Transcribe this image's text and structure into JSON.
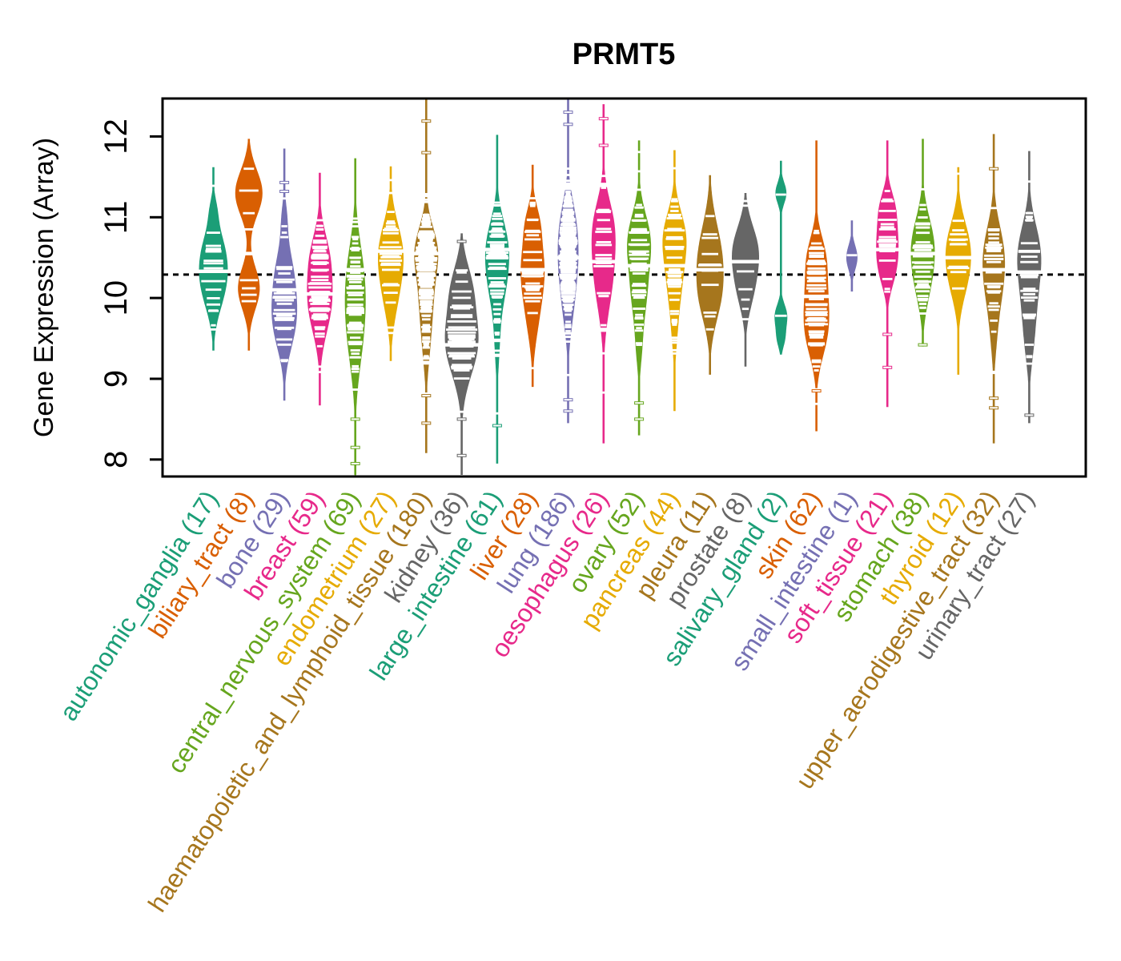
{
  "chart_data": {
    "type": "violin",
    "title": "PRMT5",
    "ylabel": "Gene Expression (Array)",
    "xlabel": "",
    "ylim": [
      7.79,
      12.47
    ],
    "yticks": [
      "8",
      "9",
      "10",
      "11",
      "12"
    ],
    "ytick_values": [
      8,
      9,
      10,
      11,
      12
    ],
    "grid": false,
    "legend": "none",
    "x_label_angle": 57,
    "reference_line": {
      "value": 10.29,
      "style": "dotted",
      "color": "#000000"
    },
    "palette_dark2": [
      "#1B9E77",
      "#D95F02",
      "#7570B3",
      "#E7298A",
      "#66A61E",
      "#E6AB02",
      "#A6761D",
      "#666666"
    ],
    "categories": [
      {
        "label": "autonomic_ganglia",
        "count": 17,
        "display": "autonomic_ganglia (17)",
        "color": "#1B9E77",
        "min": 9.35,
        "max": 11.62,
        "median": 10.33,
        "halfwidth": 18,
        "bumps": [
          [
            10.15,
            0.32,
            1
          ],
          [
            10.6,
            0.3,
            0.8
          ],
          [
            11.1,
            0.15,
            0.2
          ]
        ],
        "outliers": []
      },
      {
        "label": "biliary_tract",
        "count": 8,
        "display": "biliary_tract (8)",
        "color": "#D95F02",
        "min": 9.35,
        "max": 11.97,
        "median": 10.55,
        "halfwidth": 17,
        "bumps": [
          [
            11.3,
            0.28,
            1
          ],
          [
            10.12,
            0.26,
            0.8
          ]
        ],
        "points": [
          11.6,
          11.33,
          11.05,
          10.85,
          10.22,
          10.12,
          10.04,
          9.96
        ],
        "outliers": []
      },
      {
        "label": "bone",
        "count": 29,
        "display": "bone (29)",
        "color": "#7570B3",
        "min": 8.73,
        "max": 11.85,
        "median": 10.1,
        "halfwidth": 16,
        "bumps": [
          [
            9.7,
            0.35,
            1
          ],
          [
            10.3,
            0.35,
            0.75
          ],
          [
            11.0,
            0.2,
            0.2
          ]
        ],
        "outliers": [
          11.43,
          11.32
        ]
      },
      {
        "label": "breast",
        "count": 59,
        "display": "breast (59)",
        "color": "#E7298A",
        "min": 8.67,
        "max": 11.55,
        "median": 10.05,
        "halfwidth": 16,
        "bumps": [
          [
            9.95,
            0.38,
            1
          ],
          [
            10.55,
            0.3,
            0.6
          ]
        ],
        "outliers": []
      },
      {
        "label": "central_nervous_system",
        "count": 69,
        "display": "central_nervous_system (69)",
        "color": "#66A61E",
        "min": 7.79,
        "max": 11.73,
        "median": 10.35,
        "halfwidth": 13,
        "bumps": [
          [
            10.3,
            0.45,
            0.9
          ],
          [
            9.6,
            0.5,
            1.0
          ]
        ],
        "outliers": [
          8.5,
          8.15,
          7.95
        ]
      },
      {
        "label": "endometrium",
        "count": 27,
        "display": "endometrium (27)",
        "color": "#E6AB02",
        "min": 9.22,
        "max": 11.63,
        "median": 10.58,
        "halfwidth": 16,
        "bumps": [
          [
            10.6,
            0.35,
            1
          ],
          [
            10.05,
            0.35,
            0.55
          ]
        ],
        "outliers": []
      },
      {
        "label": "haematopoietic_and_lymphoid_tissue",
        "count": 180,
        "display": "haematopoietic_and_lymphoid_tissue (180)",
        "color": "#A6761D",
        "min": 8.08,
        "max": 12.47,
        "median": 10.55,
        "halfwidth": 15,
        "bumps": [
          [
            10.6,
            0.3,
            1
          ],
          [
            9.95,
            0.4,
            0.65
          ],
          [
            9.3,
            0.3,
            0.18
          ]
        ],
        "outliers": [
          12.19,
          11.8,
          8.79,
          8.45
        ]
      },
      {
        "label": "kidney",
        "count": 36,
        "display": "kidney (36)",
        "color": "#666666",
        "min": 7.81,
        "max": 10.8,
        "median": 9.42,
        "halfwidth": 21,
        "bumps": [
          [
            9.45,
            0.4,
            1
          ],
          [
            10.15,
            0.3,
            0.5
          ]
        ],
        "outliers": [
          10.7,
          8.5,
          8.05
        ]
      },
      {
        "label": "large_intestine",
        "count": 61,
        "display": "large_intestine (61)",
        "color": "#1B9E77",
        "min": 7.95,
        "max": 12.02,
        "median": 10.6,
        "halfwidth": 15,
        "bumps": [
          [
            10.65,
            0.33,
            1
          ],
          [
            10.15,
            0.3,
            0.6
          ],
          [
            9.5,
            0.35,
            0.25
          ]
        ],
        "outliers": [
          8.42
        ]
      },
      {
        "label": "liver",
        "count": 28,
        "display": "liver (28)",
        "color": "#D95F02",
        "min": 8.9,
        "max": 11.65,
        "median": 10.35,
        "halfwidth": 15,
        "bumps": [
          [
            10.4,
            0.35,
            1
          ],
          [
            10.95,
            0.22,
            0.45
          ],
          [
            9.8,
            0.35,
            0.5
          ]
        ],
        "outliers": []
      },
      {
        "label": "lung",
        "count": 186,
        "display": "lung (186)",
        "color": "#7570B3",
        "min": 8.45,
        "max": 12.47,
        "median": 10.5,
        "halfwidth": 13,
        "bumps": [
          [
            10.5,
            0.35,
            1
          ],
          [
            9.9,
            0.35,
            0.55
          ],
          [
            11.0,
            0.3,
            0.6
          ]
        ],
        "outliers": [
          12.3,
          12.15,
          8.74,
          8.6
        ]
      },
      {
        "label": "oesophagus",
        "count": 26,
        "display": "oesophagus (26)",
        "color": "#E7298A",
        "min": 8.2,
        "max": 12.4,
        "median": 10.45,
        "halfwidth": 15,
        "bumps": [
          [
            10.4,
            0.5,
            1
          ],
          [
            10.95,
            0.3,
            0.5
          ]
        ],
        "outliers": [
          12.22,
          11.89
        ]
      },
      {
        "label": "ovary",
        "count": 52,
        "display": "ovary (52)",
        "color": "#66A61E",
        "min": 8.3,
        "max": 11.95,
        "median": 10.4,
        "halfwidth": 15,
        "bumps": [
          [
            10.75,
            0.32,
            1
          ],
          [
            10.1,
            0.4,
            0.8
          ],
          [
            9.35,
            0.25,
            0.2
          ]
        ],
        "outliers": [
          8.7,
          8.5
        ]
      },
      {
        "label": "pancreas",
        "count": 44,
        "display": "pancreas (44)",
        "color": "#E6AB02",
        "min": 8.6,
        "max": 11.83,
        "median": 10.4,
        "halfwidth": 15,
        "bumps": [
          [
            10.8,
            0.3,
            1
          ],
          [
            10.25,
            0.38,
            0.8
          ],
          [
            9.55,
            0.28,
            0.2
          ]
        ],
        "outliers": []
      },
      {
        "label": "pleura",
        "count": 11,
        "display": "pleura (11)",
        "color": "#A6761D",
        "min": 9.05,
        "max": 11.52,
        "median": 10.35,
        "halfwidth": 17,
        "bumps": [
          [
            10.5,
            0.42,
            1
          ],
          [
            9.95,
            0.32,
            0.55
          ]
        ],
        "outliers": []
      },
      {
        "label": "prostate",
        "count": 8,
        "display": "prostate (8)",
        "color": "#666666",
        "min": 9.15,
        "max": 11.3,
        "median": 10.45,
        "halfwidth": 17,
        "bumps": [
          [
            10.6,
            0.3,
            1
          ],
          [
            10.1,
            0.28,
            0.55
          ]
        ],
        "outliers": []
      },
      {
        "label": "salivary_gland",
        "count": 2,
        "display": "salivary_gland (2)",
        "color": "#1B9E77",
        "min": 9.3,
        "max": 11.7,
        "median": null,
        "halfwidth": 8,
        "bumps": [
          [
            11.3,
            0.13,
            0.9
          ],
          [
            9.78,
            0.14,
            1
          ],
          [
            9.5,
            0.12,
            0.6
          ]
        ],
        "points": [
          11.28,
          9.78
        ],
        "outliers": []
      },
      {
        "label": "skin",
        "count": 62,
        "display": "skin (62)",
        "color": "#D95F02",
        "min": 8.35,
        "max": 11.95,
        "median": 10.02,
        "halfwidth": 16,
        "bumps": [
          [
            10.0,
            0.42,
            1
          ],
          [
            10.55,
            0.25,
            0.5
          ],
          [
            9.5,
            0.3,
            0.55
          ]
        ],
        "outliers": [
          8.85
        ]
      },
      {
        "label": "small_intestine",
        "count": 1,
        "display": "small_intestine (1)",
        "color": "#7570B3",
        "min": 10.08,
        "max": 10.96,
        "median": null,
        "halfwidth": 7,
        "bumps": [
          [
            10.5,
            0.15,
            1
          ]
        ],
        "points": [
          10.53
        ],
        "outliers": []
      },
      {
        "label": "soft_tissue",
        "count": 21,
        "display": "soft_tissue (21)",
        "color": "#E7298A",
        "min": 8.65,
        "max": 11.95,
        "median": 10.6,
        "halfwidth": 14,
        "bumps": [
          [
            10.7,
            0.3,
            1
          ],
          [
            11.15,
            0.2,
            0.5
          ],
          [
            10.3,
            0.22,
            0.45
          ]
        ],
        "outliers": [
          9.55,
          9.14
        ]
      },
      {
        "label": "stomach",
        "count": 38,
        "display": "stomach (38)",
        "color": "#66A61E",
        "min": 9.4,
        "max": 11.97,
        "median": 10.55,
        "halfwidth": 15,
        "bumps": [
          [
            10.7,
            0.33,
            1
          ],
          [
            10.2,
            0.32,
            0.65
          ]
        ],
        "outliers": [
          9.42
        ]
      },
      {
        "label": "thyroid",
        "count": 12,
        "display": "thyroid (12)",
        "color": "#E6AB02",
        "min": 9.05,
        "max": 11.62,
        "median": 10.5,
        "halfwidth": 16,
        "bumps": [
          [
            10.65,
            0.32,
            1
          ],
          [
            10.2,
            0.3,
            0.6
          ]
        ],
        "outliers": []
      },
      {
        "label": "upper_aerodigestive_tract",
        "count": 32,
        "display": "upper_aerodigestive_tract (32)",
        "color": "#A6761D",
        "min": 8.2,
        "max": 12.03,
        "median": 10.35,
        "halfwidth": 14,
        "bumps": [
          [
            10.6,
            0.35,
            1
          ],
          [
            10.1,
            0.35,
            0.75
          ],
          [
            9.5,
            0.3,
            0.25
          ]
        ],
        "outliers": [
          11.6,
          8.76,
          8.64
        ]
      },
      {
        "label": "urinary_tract",
        "count": 27,
        "display": "urinary_tract (27)",
        "color": "#666666",
        "min": 8.45,
        "max": 11.82,
        "median": 10.32,
        "halfwidth": 15,
        "bumps": [
          [
            10.6,
            0.35,
            1
          ],
          [
            10.0,
            0.42,
            0.75
          ],
          [
            9.4,
            0.3,
            0.25
          ]
        ],
        "outliers": [
          8.55
        ]
      }
    ]
  }
}
